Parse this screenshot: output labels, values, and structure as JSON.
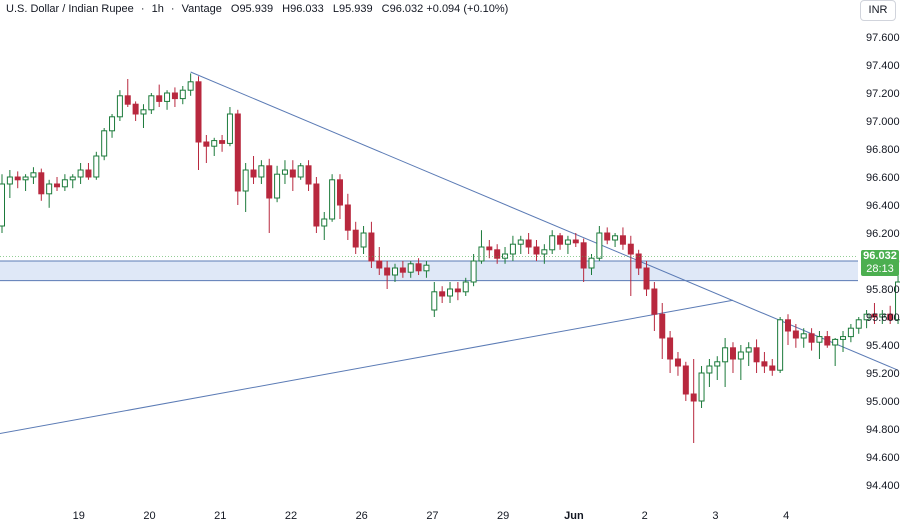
{
  "header": {
    "symbol": "U.S. Dollar / Indian Rupee",
    "separator1": "·",
    "interval": "1h",
    "separator2": "·",
    "source": "Vantage",
    "o_label": "O",
    "o_value": "95.939",
    "h_label": "H",
    "h_value": "96.033",
    "l_label": "L",
    "l_value": "95.939",
    "c_label": "C",
    "c_value": "96.032",
    "change": "+0.094 (+0.10%)"
  },
  "currency": "INR",
  "last_price": {
    "price": "96.032",
    "countdown": "28:13",
    "color": "#4caf50"
  },
  "colors": {
    "up": "#26a69a",
    "up_dark": "#1b7a3a",
    "down": "#b8283e",
    "trendline": "#5b7bb5",
    "zone_fill": "#dfe8f7",
    "zone_border": "#5b7bb5"
  },
  "chart_data": {
    "type": "candlestick",
    "title": "U.S. Dollar / Indian Rupee · 1h · Vantage",
    "y_axis_position": "right",
    "ylim": [
      94.3,
      97.72
    ],
    "y_ticks": [
      "97.600",
      "97.400",
      "97.200",
      "97.000",
      "96.800",
      "96.600",
      "96.400",
      "96.200",
      "96.000",
      "95.800",
      "95.600",
      "95.400",
      "95.200",
      "95.000",
      "94.800",
      "94.600",
      "94.400"
    ],
    "y_tick_values": [
      97.6,
      97.4,
      97.2,
      97.0,
      96.8,
      96.6,
      96.4,
      96.2,
      96.0,
      95.8,
      95.6,
      95.4,
      95.2,
      95.0,
      94.8,
      94.6,
      94.4
    ],
    "x_ticks": [
      {
        "label": "19",
        "index": 9,
        "bold": false
      },
      {
        "label": "20",
        "index": 18,
        "bold": false
      },
      {
        "label": "21",
        "index": 27,
        "bold": false
      },
      {
        "label": "22",
        "index": 36,
        "bold": false
      },
      {
        "label": "26",
        "index": 45,
        "bold": false
      },
      {
        "label": "27",
        "index": 54,
        "bold": false
      },
      {
        "label": "29",
        "index": 63,
        "bold": false
      },
      {
        "label": "Jun",
        "index": 72,
        "bold": true
      },
      {
        "label": "2",
        "index": 81,
        "bold": false
      },
      {
        "label": "3",
        "index": 90,
        "bold": false
      },
      {
        "label": "4",
        "index": 99,
        "bold": false
      }
    ],
    "candles": [
      [
        96.25,
        96.62,
        96.2,
        96.55
      ],
      [
        96.55,
        96.65,
        96.45,
        96.6
      ],
      [
        96.6,
        96.64,
        96.52,
        96.58
      ],
      [
        96.58,
        96.62,
        96.5,
        96.6
      ],
      [
        96.6,
        96.67,
        96.55,
        96.63
      ],
      [
        96.63,
        96.66,
        96.43,
        96.48
      ],
      [
        96.48,
        96.58,
        96.38,
        96.55
      ],
      [
        96.55,
        96.6,
        96.5,
        96.53
      ],
      [
        96.53,
        96.62,
        96.5,
        96.58
      ],
      [
        96.58,
        96.62,
        96.52,
        96.6
      ],
      [
        96.6,
        96.7,
        96.55,
        96.65
      ],
      [
        96.65,
        96.7,
        96.58,
        96.6
      ],
      [
        96.6,
        96.78,
        96.58,
        96.75
      ],
      [
        96.75,
        96.95,
        96.72,
        96.93
      ],
      [
        96.93,
        97.05,
        96.88,
        97.03
      ],
      [
        97.03,
        97.22,
        97.0,
        97.18
      ],
      [
        97.18,
        97.3,
        97.1,
        97.12
      ],
      [
        97.12,
        97.14,
        97.0,
        97.05
      ],
      [
        97.05,
        97.12,
        96.95,
        97.08
      ],
      [
        97.08,
        97.2,
        97.05,
        97.18
      ],
      [
        97.18,
        97.26,
        97.1,
        97.14
      ],
      [
        97.14,
        97.22,
        97.08,
        97.2
      ],
      [
        97.2,
        97.24,
        97.1,
        97.16
      ],
      [
        97.16,
        97.25,
        97.12,
        97.22
      ],
      [
        97.22,
        97.34,
        97.18,
        97.28
      ],
      [
        97.28,
        97.32,
        96.65,
        96.85
      ],
      [
        96.85,
        96.9,
        96.7,
        96.82
      ],
      [
        96.82,
        96.88,
        96.75,
        96.86
      ],
      [
        96.86,
        96.9,
        96.78,
        96.84
      ],
      [
        96.84,
        97.1,
        96.82,
        97.05
      ],
      [
        97.05,
        97.08,
        96.4,
        96.5
      ],
      [
        96.5,
        96.7,
        96.35,
        96.65
      ],
      [
        96.65,
        96.75,
        96.55,
        96.6
      ],
      [
        96.6,
        96.72,
        96.55,
        96.68
      ],
      [
        96.68,
        96.73,
        96.2,
        96.45
      ],
      [
        96.45,
        96.68,
        96.42,
        96.62
      ],
      [
        96.62,
        96.72,
        96.55,
        96.65
      ],
      [
        96.65,
        96.72,
        96.5,
        96.6
      ],
      [
        96.6,
        96.7,
        96.58,
        96.68
      ],
      [
        96.68,
        96.72,
        96.5,
        96.55
      ],
      [
        96.55,
        96.6,
        96.2,
        96.25
      ],
      [
        96.25,
        96.35,
        96.15,
        96.3
      ],
      [
        96.3,
        96.62,
        96.28,
        96.58
      ],
      [
        96.58,
        96.62,
        96.3,
        96.4
      ],
      [
        96.4,
        96.48,
        96.15,
        96.22
      ],
      [
        96.22,
        96.28,
        96.05,
        96.1
      ],
      [
        96.1,
        96.25,
        96.05,
        96.2
      ],
      [
        96.2,
        96.28,
        95.95,
        96.0
      ],
      [
        96.0,
        96.1,
        95.9,
        95.95
      ],
      [
        95.95,
        96.0,
        95.8,
        95.9
      ],
      [
        95.9,
        95.98,
        95.85,
        95.95
      ],
      [
        95.95,
        96.0,
        95.88,
        95.92
      ],
      [
        95.92,
        96.0,
        95.88,
        95.98
      ],
      [
        95.98,
        96.02,
        95.9,
        95.93
      ],
      [
        95.93,
        96.0,
        95.88,
        95.97
      ],
      [
        95.65,
        95.85,
        95.6,
        95.78
      ],
      [
        95.78,
        95.82,
        95.7,
        95.75
      ],
      [
        95.75,
        95.85,
        95.7,
        95.8
      ],
      [
        95.8,
        95.85,
        95.72,
        95.78
      ],
      [
        95.78,
        95.88,
        95.75,
        95.85
      ],
      [
        95.85,
        96.05,
        95.82,
        96.0
      ],
      [
        96.0,
        96.22,
        95.98,
        96.1
      ],
      [
        96.1,
        96.15,
        96.02,
        96.08
      ],
      [
        96.08,
        96.12,
        95.98,
        96.02
      ],
      [
        96.02,
        96.1,
        95.98,
        96.05
      ],
      [
        96.05,
        96.18,
        96.0,
        96.12
      ],
      [
        96.12,
        96.18,
        96.05,
        96.15
      ],
      [
        96.15,
        96.2,
        96.05,
        96.1
      ],
      [
        96.1,
        96.15,
        96.0,
        96.05
      ],
      [
        96.05,
        96.12,
        95.98,
        96.08
      ],
      [
        96.08,
        96.22,
        96.05,
        96.18
      ],
      [
        96.18,
        96.2,
        96.08,
        96.12
      ],
      [
        96.12,
        96.18,
        96.05,
        96.15
      ],
      [
        96.15,
        96.2,
        96.1,
        96.13
      ],
      [
        96.13,
        96.16,
        95.85,
        95.95
      ],
      [
        95.95,
        96.05,
        95.9,
        96.02
      ],
      [
        96.02,
        96.25,
        96.0,
        96.2
      ],
      [
        96.2,
        96.24,
        96.12,
        96.15
      ],
      [
        96.15,
        96.2,
        96.1,
        96.18
      ],
      [
        96.18,
        96.24,
        96.08,
        96.12
      ],
      [
        96.12,
        96.18,
        95.75,
        96.05
      ],
      [
        96.05,
        96.08,
        95.9,
        95.95
      ],
      [
        95.95,
        96.0,
        95.75,
        95.8
      ],
      [
        95.8,
        95.85,
        95.5,
        95.62
      ],
      [
        95.62,
        95.7,
        95.3,
        95.45
      ],
      [
        95.45,
        95.5,
        95.2,
        95.3
      ],
      [
        95.3,
        95.35,
        95.18,
        95.25
      ],
      [
        95.25,
        95.28,
        95.0,
        95.05
      ],
      [
        95.05,
        95.3,
        94.7,
        95.0
      ],
      [
        95.0,
        95.25,
        94.95,
        95.2
      ],
      [
        95.2,
        95.3,
        95.1,
        95.25
      ],
      [
        95.25,
        95.32,
        95.15,
        95.28
      ],
      [
        95.28,
        95.45,
        95.1,
        95.38
      ],
      [
        95.38,
        95.42,
        95.2,
        95.3
      ],
      [
        95.3,
        95.4,
        95.15,
        95.35
      ],
      [
        95.35,
        95.42,
        95.25,
        95.38
      ],
      [
        95.38,
        95.44,
        95.2,
        95.28
      ],
      [
        95.28,
        95.35,
        95.2,
        95.25
      ],
      [
        95.25,
        95.3,
        95.18,
        95.22
      ],
      [
        95.22,
        95.6,
        95.2,
        95.58
      ],
      [
        95.58,
        95.62,
        95.4,
        95.5
      ],
      [
        95.5,
        95.55,
        95.38,
        95.45
      ],
      [
        95.45,
        95.52,
        95.38,
        95.48
      ],
      [
        95.48,
        95.52,
        95.36,
        95.42
      ],
      [
        95.42,
        95.5,
        95.3,
        95.46
      ],
      [
        95.46,
        95.5,
        95.38,
        95.4
      ],
      [
        95.4,
        95.45,
        95.25,
        95.44
      ],
      [
        95.44,
        95.5,
        95.35,
        95.46
      ],
      [
        95.46,
        95.55,
        95.42,
        95.52
      ],
      [
        95.52,
        95.6,
        95.48,
        95.58
      ],
      [
        95.58,
        95.65,
        95.52,
        95.62
      ],
      [
        95.62,
        95.7,
        95.55,
        95.6
      ],
      [
        95.6,
        95.65,
        95.55,
        95.62
      ],
      [
        95.62,
        95.68,
        95.55,
        95.58
      ],
      [
        95.58,
        95.9,
        95.55,
        95.85
      ],
      [
        95.85,
        96.1,
        95.82,
        96.05
      ],
      [
        96.05,
        96.12,
        95.98,
        96.08
      ],
      [
        96.08,
        96.12,
        95.8,
        95.9
      ],
      [
        95.9,
        96.02,
        95.8,
        95.95
      ],
      [
        95.95,
        96.05,
        95.9,
        96.0
      ],
      [
        96.0,
        96.18,
        95.98,
        96.12
      ],
      [
        96.12,
        96.18,
        96.05,
        96.15
      ],
      [
        96.15,
        96.18,
        96.08,
        96.12
      ],
      [
        96.12,
        96.15,
        96.0,
        96.05
      ],
      [
        96.05,
        96.08,
        95.92,
        95.98
      ],
      [
        95.939,
        96.033,
        95.939,
        96.032
      ]
    ],
    "trendlines": [
      {
        "name": "down",
        "from": [
          24,
          97.35
        ],
        "to": [
          114,
          95.22
        ]
      },
      {
        "name": "up",
        "from": [
          -1,
          94.76
        ],
        "to": [
          93,
          95.72
        ]
      }
    ],
    "zone": {
      "top": 96.0,
      "bottom": 95.86
    },
    "last": 96.032
  }
}
